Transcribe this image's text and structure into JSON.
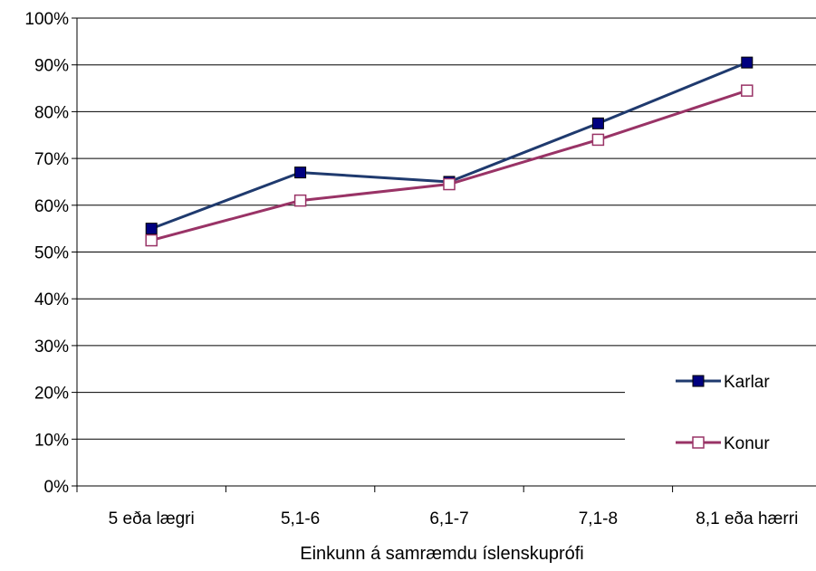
{
  "chart_data": {
    "type": "line",
    "categories": [
      "5 eða lægri",
      "5,1-6",
      "6,1-7",
      "7,1-8",
      "8,1 eða hærri"
    ],
    "series": [
      {
        "name": "Karlar",
        "values": [
          55,
          67,
          65,
          77.5,
          90.5
        ],
        "color": "#1f3a6e",
        "marker": "filled-square",
        "marker_color": "#000080"
      },
      {
        "name": "Konur",
        "values": [
          52.5,
          61,
          64.5,
          74,
          84.5
        ],
        "color": "#993366",
        "marker": "open-square",
        "marker_color": "#993366"
      }
    ],
    "title": "",
    "xlabel": "Einkunn á samræmdu íslenskuprófi",
    "ylabel": "",
    "ylim": [
      0,
      100
    ],
    "yticks": [
      "0%",
      "10%",
      "20%",
      "30%",
      "40%",
      "50%",
      "60%",
      "70%",
      "80%",
      "90%",
      "100%"
    ],
    "grid": true,
    "legend_position": "right"
  }
}
